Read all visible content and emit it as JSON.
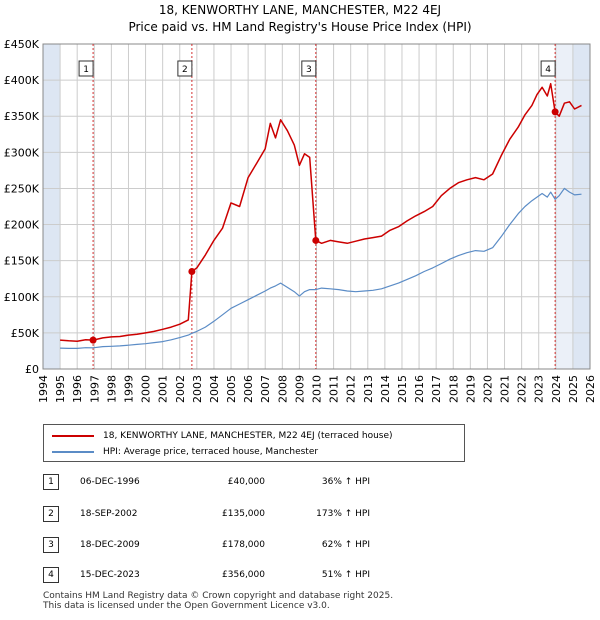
{
  "title_line1": "18, KENWORTHY LANE, MANCHESTER, M22 4EJ",
  "title_line2": "Price paid vs. HM Land Registry's House Price Index (HPI)",
  "colors": {
    "property": "#cc0000",
    "hpi": "#5b8cc6",
    "marker": "#cc0000",
    "vline": "#cc0000",
    "grid": "#cccccc",
    "shade": "#dde6f3"
  },
  "chart_data": {
    "type": "line",
    "title": "Price paid vs. HM Land Registry's House Price Index (HPI)",
    "xlabel": "",
    "ylabel": "",
    "xlim": [
      1994,
      2026
    ],
    "ylim": [
      0,
      450000
    ],
    "y_ticks": [
      0,
      50000,
      100000,
      150000,
      200000,
      250000,
      300000,
      350000,
      400000,
      450000
    ],
    "y_tick_labels": [
      "£0",
      "£50K",
      "£100K",
      "£150K",
      "£200K",
      "£250K",
      "£300K",
      "£350K",
      "£400K",
      "£450K"
    ],
    "x_ticks": [
      1994,
      1995,
      1996,
      1997,
      1998,
      1999,
      2000,
      2001,
      2002,
      2003,
      2004,
      2005,
      2006,
      2007,
      2008,
      2009,
      2010,
      2011,
      2012,
      2013,
      2014,
      2015,
      2016,
      2017,
      2018,
      2019,
      2020,
      2021,
      2022,
      2023,
      2024,
      2025,
      2026
    ],
    "x_tick_labels": [
      "1994",
      "1995",
      "1996",
      "1997",
      "1998",
      "1999",
      "2000",
      "2001",
      "2002",
      "2003",
      "2004",
      "2005",
      "2006",
      "2007",
      "2008",
      "2009",
      "2010",
      "2011",
      "2012",
      "2013",
      "2014",
      "2015",
      "2016",
      "2017",
      "2018",
      "2019",
      "2020",
      "2021",
      "2022",
      "2023",
      "2024",
      "2025",
      "2026"
    ],
    "series": [
      {
        "name": "18, KENWORTHY LANE, MANCHESTER, M22 4EJ (terraced house)",
        "x": [
          1995.0,
          1995.5,
          1996.0,
          1996.5,
          1996.93,
          1997.5,
          1998.0,
          1998.5,
          1999.0,
          1999.5,
          2000.0,
          2000.5,
          2001.0,
          2001.5,
          2002.0,
          2002.5,
          2002.71,
          2003.0,
          2003.5,
          2004.0,
          2004.5,
          2005.0,
          2005.5,
          2006.0,
          2006.5,
          2007.0,
          2007.3,
          2007.6,
          2007.9,
          2008.3,
          2008.7,
          2009.0,
          2009.3,
          2009.6,
          2009.96,
          2010.3,
          2010.8,
          2011.3,
          2011.8,
          2012.3,
          2012.8,
          2013.3,
          2013.8,
          2014.3,
          2014.8,
          2015.3,
          2015.8,
          2016.3,
          2016.8,
          2017.3,
          2017.8,
          2018.3,
          2018.8,
          2019.3,
          2019.8,
          2020.3,
          2020.8,
          2021.3,
          2021.8,
          2022.2,
          2022.6,
          2022.9,
          2023.2,
          2023.5,
          2023.7,
          2023.96,
          2024.2,
          2024.5,
          2024.8,
          2025.1,
          2025.5
        ],
        "values": [
          40000,
          39000,
          38500,
          40500,
          40000,
          43000,
          44500,
          45000,
          47000,
          48000,
          50000,
          52000,
          55000,
          58000,
          62000,
          68000,
          135000,
          140000,
          158000,
          178000,
          195000,
          230000,
          225000,
          265000,
          285000,
          305000,
          340000,
          320000,
          345000,
          330000,
          310000,
          282000,
          298000,
          293000,
          178000,
          174000,
          178000,
          176000,
          174000,
          177000,
          180000,
          182000,
          184000,
          192000,
          197000,
          205000,
          212000,
          218000,
          225000,
          240000,
          250000,
          258000,
          262000,
          265000,
          262000,
          270000,
          295000,
          318000,
          335000,
          352000,
          365000,
          380000,
          390000,
          378000,
          395000,
          356000,
          350000,
          368000,
          370000,
          360000,
          365000
        ]
      },
      {
        "name": "HPI: Average price, terraced house, Manchester",
        "x": [
          1995.0,
          1995.5,
          1996.0,
          1996.5,
          1996.93,
          1997.5,
          1998.0,
          1998.5,
          1999.0,
          1999.5,
          2000.0,
          2000.5,
          2001.0,
          2001.5,
          2002.0,
          2002.5,
          2002.71,
          2003.0,
          2003.5,
          2004.0,
          2004.5,
          2005.0,
          2005.5,
          2006.0,
          2006.5,
          2007.0,
          2007.3,
          2007.6,
          2007.9,
          2008.3,
          2008.7,
          2009.0,
          2009.3,
          2009.6,
          2009.96,
          2010.3,
          2010.8,
          2011.3,
          2011.8,
          2012.3,
          2012.8,
          2013.3,
          2013.8,
          2014.3,
          2014.8,
          2015.3,
          2015.8,
          2016.3,
          2016.8,
          2017.3,
          2017.8,
          2018.3,
          2018.8,
          2019.3,
          2019.8,
          2020.3,
          2020.8,
          2021.3,
          2021.8,
          2022.2,
          2022.6,
          2022.9,
          2023.2,
          2023.5,
          2023.7,
          2023.96,
          2024.2,
          2024.5,
          2024.8,
          2025.1,
          2025.5
        ],
        "values": [
          29000,
          28500,
          28500,
          29500,
          29400,
          31000,
          31500,
          32000,
          33000,
          34000,
          35000,
          36500,
          38000,
          40500,
          43500,
          47000,
          49500,
          52000,
          58000,
          66000,
          75000,
          84000,
          90000,
          96000,
          102000,
          108000,
          112000,
          115000,
          119000,
          113000,
          107000,
          101000,
          107000,
          110000,
          110000,
          112000,
          111000,
          110000,
          108000,
          107000,
          108000,
          109000,
          111000,
          115000,
          119000,
          124000,
          129000,
          135000,
          140000,
          146000,
          152000,
          157000,
          161000,
          164000,
          163000,
          168000,
          183000,
          200000,
          215000,
          225000,
          233000,
          238000,
          243000,
          238000,
          245000,
          235000,
          240000,
          250000,
          245000,
          241000,
          242000
        ]
      }
    ],
    "sales": [
      {
        "num": "1",
        "date": "06-DEC-1996",
        "x": 1996.93,
        "price": 40000,
        "price_label": "£40,000",
        "hpi_label": "36% ↑ HPI"
      },
      {
        "num": "2",
        "date": "18-SEP-2002",
        "x": 2002.71,
        "price": 135000,
        "price_label": "£135,000",
        "hpi_label": "173% ↑ HPI"
      },
      {
        "num": "3",
        "date": "18-DEC-2009",
        "x": 2009.96,
        "price": 178000,
        "price_label": "£178,000",
        "hpi_label": "62% ↑ HPI"
      },
      {
        "num": "4",
        "date": "15-DEC-2023",
        "x": 2023.96,
        "price": 356000,
        "price_label": "£356,000",
        "hpi_label": "51% ↑ HPI"
      }
    ],
    "shaded_x_ranges": [
      [
        1994,
        1995
      ],
      [
        2025,
        2026
      ]
    ]
  },
  "legend": {
    "property_label": "18, KENWORTHY LANE, MANCHESTER, M22 4EJ (terraced house)",
    "hpi_label": "HPI: Average price, terraced house, Manchester"
  },
  "footer": {
    "line1": "Contains HM Land Registry data © Crown copyright and database right 2025.",
    "line2": "This data is licensed under the Open Government Licence v3.0."
  }
}
